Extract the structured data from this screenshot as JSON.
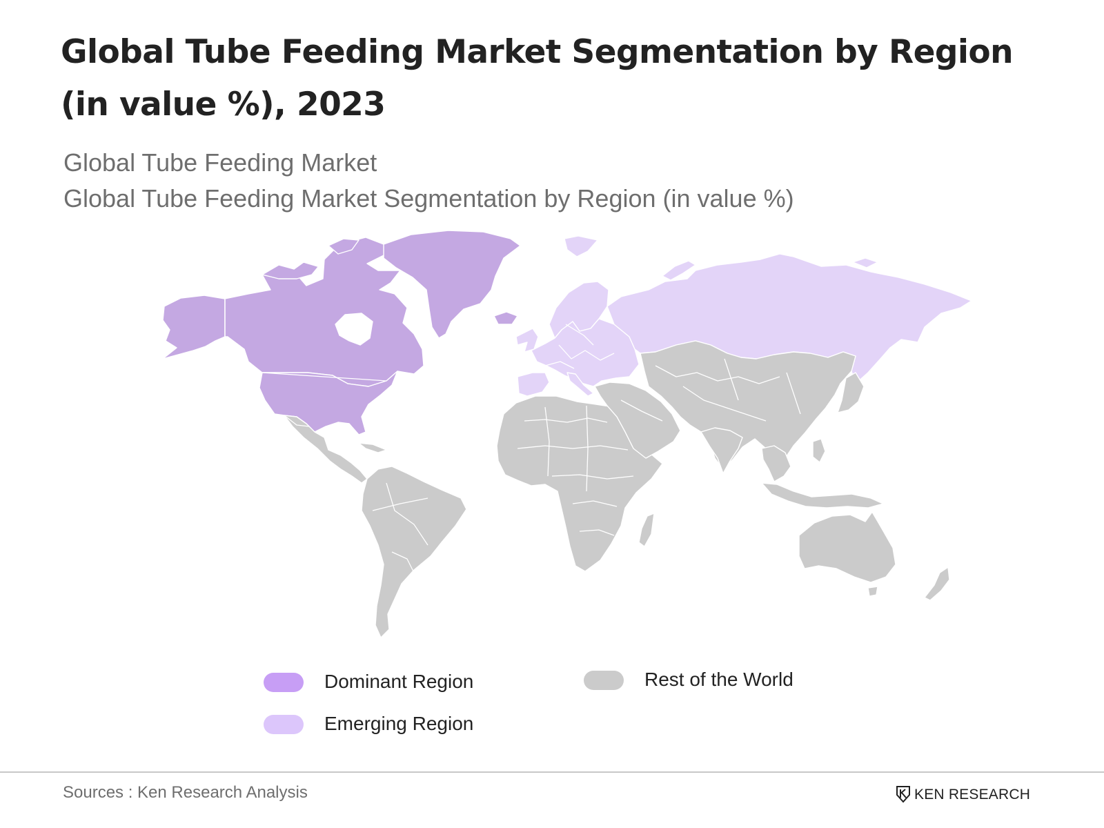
{
  "header": {
    "title": "Global Tube Feeding Market Segmentation by Region (in value %), 2023",
    "subtitle_1": "Global Tube Feeding Market",
    "subtitle_2": "Global Tube Feeding Market Segmentation by Region (in value %)"
  },
  "map": {
    "categories": {
      "dominant": {
        "label": "Dominant Region",
        "color": "#c4a8e2",
        "legend_color": "#c79ef5"
      },
      "emerging": {
        "label": "Emerging Region",
        "color": "#e3d4f8",
        "legend_color": "#dcc6fb"
      },
      "rest": {
        "label": "Rest of the World",
        "color": "#cbcbcb",
        "legend_color": "#cbcbcb"
      }
    },
    "regions": [
      {
        "name": "North America and Greenland",
        "category": "dominant"
      },
      {
        "name": "Europe and Russia",
        "category": "emerging"
      },
      {
        "name": "Latin America, Africa, Middle East, Asia and Oceania",
        "category": "rest"
      }
    ]
  },
  "footer": {
    "source": "Sources : Ken Research Analysis",
    "brand": "KEN RESEARCH"
  }
}
